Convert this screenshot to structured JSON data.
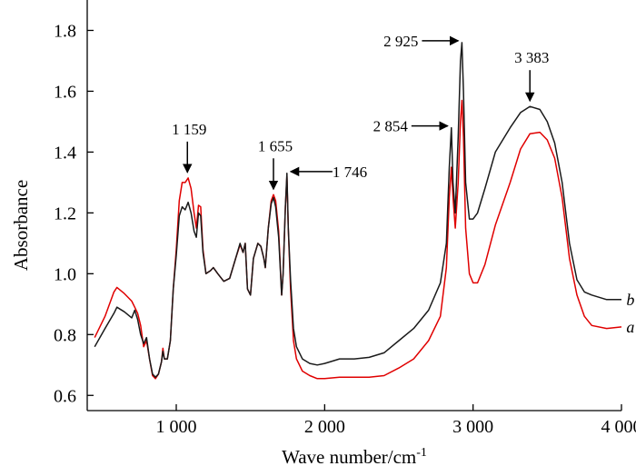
{
  "chart_data": {
    "type": "line",
    "title": "",
    "xlabel": "Wave number/cm",
    "xlabel_sup": "-1",
    "ylabel": "Absorbance",
    "xlim": [
      400,
      4000
    ],
    "ylim": [
      0.55,
      1.9
    ],
    "x_ticks": [
      1000,
      2000,
      3000,
      4000
    ],
    "x_tick_labels": [
      "1 000",
      "2 000",
      "3 000",
      "4 000"
    ],
    "y_ticks": [
      0.6,
      0.8,
      1.0,
      1.2,
      1.4,
      1.6,
      1.8
    ],
    "y_tick_labels": [
      "0.6",
      "0.8",
      "1.0",
      "1.2",
      "1.4",
      "1.6",
      "1.8"
    ],
    "grid": false,
    "legend": "none",
    "series": [
      {
        "name": "a",
        "color": "#e00000",
        "points": [
          [
            450,
            0.79
          ],
          [
            520,
            0.86
          ],
          [
            580,
            0.94
          ],
          [
            600,
            0.955
          ],
          [
            650,
            0.935
          ],
          [
            700,
            0.91
          ],
          [
            720,
            0.89
          ],
          [
            740,
            0.87
          ],
          [
            760,
            0.83
          ],
          [
            780,
            0.76
          ],
          [
            800,
            0.78
          ],
          [
            820,
            0.72
          ],
          [
            840,
            0.665
          ],
          [
            860,
            0.655
          ],
          [
            880,
            0.67
          ],
          [
            900,
            0.71
          ],
          [
            910,
            0.755
          ],
          [
            920,
            0.72
          ],
          [
            940,
            0.72
          ],
          [
            960,
            0.78
          ],
          [
            980,
            0.95
          ],
          [
            1000,
            1.08
          ],
          [
            1020,
            1.24
          ],
          [
            1040,
            1.3
          ],
          [
            1060,
            1.3
          ],
          [
            1080,
            1.315
          ],
          [
            1100,
            1.28
          ],
          [
            1120,
            1.2
          ],
          [
            1135,
            1.15
          ],
          [
            1150,
            1.225
          ],
          [
            1165,
            1.22
          ],
          [
            1180,
            1.08
          ],
          [
            1200,
            1.0
          ],
          [
            1230,
            1.01
          ],
          [
            1250,
            1.02
          ],
          [
            1280,
            1.0
          ],
          [
            1320,
            0.975
          ],
          [
            1360,
            0.985
          ],
          [
            1400,
            1.05
          ],
          [
            1430,
            1.095
          ],
          [
            1450,
            1.07
          ],
          [
            1465,
            1.1
          ],
          [
            1480,
            0.95
          ],
          [
            1500,
            0.93
          ],
          [
            1520,
            1.05
          ],
          [
            1550,
            1.1
          ],
          [
            1570,
            1.09
          ],
          [
            1590,
            1.05
          ],
          [
            1600,
            1.02
          ],
          [
            1620,
            1.15
          ],
          [
            1640,
            1.24
          ],
          [
            1655,
            1.26
          ],
          [
            1670,
            1.24
          ],
          [
            1690,
            1.14
          ],
          [
            1710,
            0.93
          ],
          [
            1720,
            1.0
          ],
          [
            1735,
            1.22
          ],
          [
            1746,
            1.32
          ],
          [
            1755,
            1.15
          ],
          [
            1770,
            0.95
          ],
          [
            1790,
            0.78
          ],
          [
            1810,
            0.72
          ],
          [
            1850,
            0.68
          ],
          [
            1900,
            0.665
          ],
          [
            1950,
            0.655
          ],
          [
            2000,
            0.655
          ],
          [
            2100,
            0.66
          ],
          [
            2200,
            0.66
          ],
          [
            2300,
            0.66
          ],
          [
            2400,
            0.665
          ],
          [
            2500,
            0.69
          ],
          [
            2600,
            0.72
          ],
          [
            2700,
            0.78
          ],
          [
            2780,
            0.86
          ],
          [
            2820,
            1.02
          ],
          [
            2840,
            1.25
          ],
          [
            2854,
            1.35
          ],
          [
            2865,
            1.25
          ],
          [
            2880,
            1.15
          ],
          [
            2900,
            1.3
          ],
          [
            2915,
            1.5
          ],
          [
            2925,
            1.57
          ],
          [
            2935,
            1.45
          ],
          [
            2950,
            1.15
          ],
          [
            2975,
            1.0
          ],
          [
            3000,
            0.97
          ],
          [
            3030,
            0.97
          ],
          [
            3080,
            1.03
          ],
          [
            3150,
            1.16
          ],
          [
            3250,
            1.3
          ],
          [
            3320,
            1.41
          ],
          [
            3383,
            1.46
          ],
          [
            3450,
            1.465
          ],
          [
            3500,
            1.44
          ],
          [
            3550,
            1.38
          ],
          [
            3600,
            1.25
          ],
          [
            3650,
            1.05
          ],
          [
            3700,
            0.93
          ],
          [
            3750,
            0.86
          ],
          [
            3800,
            0.83
          ],
          [
            3900,
            0.82
          ],
          [
            4000,
            0.825
          ]
        ]
      },
      {
        "name": "b",
        "color": "#1a1a1a",
        "points": [
          [
            450,
            0.76
          ],
          [
            520,
            0.82
          ],
          [
            580,
            0.87
          ],
          [
            600,
            0.89
          ],
          [
            650,
            0.875
          ],
          [
            700,
            0.855
          ],
          [
            720,
            0.88
          ],
          [
            740,
            0.85
          ],
          [
            760,
            0.8
          ],
          [
            780,
            0.77
          ],
          [
            800,
            0.79
          ],
          [
            820,
            0.72
          ],
          [
            840,
            0.67
          ],
          [
            860,
            0.66
          ],
          [
            880,
            0.67
          ],
          [
            900,
            0.71
          ],
          [
            910,
            0.745
          ],
          [
            920,
            0.72
          ],
          [
            940,
            0.72
          ],
          [
            960,
            0.78
          ],
          [
            980,
            0.95
          ],
          [
            1000,
            1.06
          ],
          [
            1020,
            1.19
          ],
          [
            1040,
            1.22
          ],
          [
            1060,
            1.21
          ],
          [
            1080,
            1.235
          ],
          [
            1100,
            1.2
          ],
          [
            1120,
            1.14
          ],
          [
            1135,
            1.12
          ],
          [
            1150,
            1.2
          ],
          [
            1165,
            1.19
          ],
          [
            1180,
            1.07
          ],
          [
            1200,
            1.0
          ],
          [
            1230,
            1.01
          ],
          [
            1250,
            1.02
          ],
          [
            1280,
            1.0
          ],
          [
            1320,
            0.975
          ],
          [
            1360,
            0.985
          ],
          [
            1400,
            1.05
          ],
          [
            1430,
            1.1
          ],
          [
            1450,
            1.07
          ],
          [
            1465,
            1.1
          ],
          [
            1480,
            0.95
          ],
          [
            1500,
            0.93
          ],
          [
            1520,
            1.05
          ],
          [
            1550,
            1.1
          ],
          [
            1570,
            1.09
          ],
          [
            1590,
            1.05
          ],
          [
            1600,
            1.02
          ],
          [
            1620,
            1.15
          ],
          [
            1640,
            1.23
          ],
          [
            1655,
            1.25
          ],
          [
            1670,
            1.22
          ],
          [
            1690,
            1.12
          ],
          [
            1710,
            0.93
          ],
          [
            1720,
            1.0
          ],
          [
            1735,
            1.22
          ],
          [
            1746,
            1.33
          ],
          [
            1755,
            1.15
          ],
          [
            1770,
            0.98
          ],
          [
            1790,
            0.82
          ],
          [
            1810,
            0.76
          ],
          [
            1850,
            0.72
          ],
          [
            1900,
            0.705
          ],
          [
            1950,
            0.7
          ],
          [
            2000,
            0.705
          ],
          [
            2100,
            0.72
          ],
          [
            2200,
            0.72
          ],
          [
            2300,
            0.725
          ],
          [
            2400,
            0.74
          ],
          [
            2500,
            0.78
          ],
          [
            2600,
            0.82
          ],
          [
            2700,
            0.88
          ],
          [
            2780,
            0.97
          ],
          [
            2820,
            1.1
          ],
          [
            2840,
            1.35
          ],
          [
            2854,
            1.48
          ],
          [
            2865,
            1.3
          ],
          [
            2880,
            1.2
          ],
          [
            2900,
            1.45
          ],
          [
            2915,
            1.7
          ],
          [
            2925,
            1.76
          ],
          [
            2935,
            1.6
          ],
          [
            2950,
            1.3
          ],
          [
            2975,
            1.18
          ],
          [
            3000,
            1.18
          ],
          [
            3030,
            1.2
          ],
          [
            3080,
            1.28
          ],
          [
            3150,
            1.4
          ],
          [
            3250,
            1.48
          ],
          [
            3320,
            1.53
          ],
          [
            3383,
            1.55
          ],
          [
            3450,
            1.54
          ],
          [
            3500,
            1.5
          ],
          [
            3550,
            1.43
          ],
          [
            3600,
            1.3
          ],
          [
            3650,
            1.1
          ],
          [
            3700,
            0.98
          ],
          [
            3750,
            0.94
          ],
          [
            3800,
            0.93
          ],
          [
            3900,
            0.915
          ],
          [
            4000,
            0.915
          ]
        ]
      }
    ],
    "series_labels": [
      {
        "text": "a",
        "x": 4070,
        "y": 0.825
      },
      {
        "text": "b",
        "x": 4070,
        "y": 0.915
      }
    ],
    "annotations": [
      {
        "text": "1 159",
        "x": 1075,
        "y": 1.315
      },
      {
        "text": "1 655",
        "x": 1655,
        "y": 1.26
      },
      {
        "text": "1 746",
        "x": 1746,
        "y": 1.33
      },
      {
        "text": "2 854",
        "x": 2854,
        "y": 1.48
      },
      {
        "text": "2 925",
        "x": 2925,
        "y": 1.76
      },
      {
        "text": "3 383",
        "x": 3383,
        "y": 1.55
      }
    ]
  }
}
